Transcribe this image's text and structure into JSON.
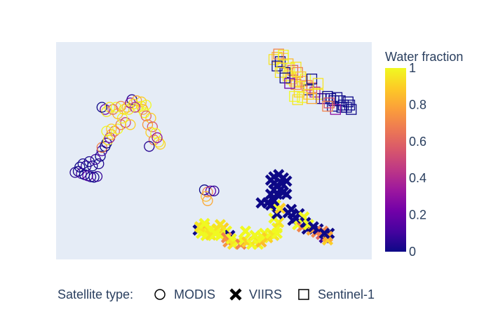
{
  "chart_data": {
    "type": "scatter",
    "title": "",
    "xlabel": "",
    "ylabel": "",
    "show_axis_ticks": false,
    "colors": {
      "plot_bg": "#e5ecf6",
      "page_bg": "#ffffff",
      "text": "#2a3f5f"
    },
    "colorscale": {
      "name": "Plasma",
      "stops": [
        [
          0.0,
          "#0d0887"
        ],
        [
          0.1111,
          "#46039f"
        ],
        [
          0.2222,
          "#7201a8"
        ],
        [
          0.3333,
          "#9c179e"
        ],
        [
          0.4444,
          "#bd3786"
        ],
        [
          0.5556,
          "#d8576b"
        ],
        [
          0.6667,
          "#ed7953"
        ],
        [
          0.7778,
          "#fb9f3a"
        ],
        [
          0.8889,
          "#fdca26"
        ],
        [
          1.0,
          "#f0f921"
        ]
      ]
    },
    "colorbar": {
      "title": "Water fraction",
      "range": [
        0,
        1
      ],
      "ticks": [
        0,
        0.2,
        0.4,
        0.6,
        0.8,
        1
      ],
      "tick_labels": [
        "0",
        "0.2",
        "0.4",
        "0.6",
        "0.8",
        "1"
      ]
    },
    "legend": {
      "title": "Satellite type:",
      "placement": "bottom-center",
      "orientation": "horizontal",
      "entries": [
        {
          "name": "MODIS",
          "symbol": "circle-open"
        },
        {
          "name": "VIIRS",
          "symbol": "x"
        },
        {
          "name": "Sentinel-1",
          "symbol": "square-open"
        }
      ]
    },
    "series": [
      {
        "name": "MODIS",
        "symbol": "circle-open",
        "points": [
          [
            0.06,
            0.4,
            0.05
          ],
          [
            0.07,
            0.405,
            0.02
          ],
          [
            0.08,
            0.395,
            0.1
          ],
          [
            0.09,
            0.39,
            0.0
          ],
          [
            0.1,
            0.385,
            0.15
          ],
          [
            0.11,
            0.38,
            0.05
          ],
          [
            0.12,
            0.378,
            0.0
          ],
          [
            0.13,
            0.382,
            0.08
          ],
          [
            0.075,
            0.425,
            0.0
          ],
          [
            0.085,
            0.44,
            0.03
          ],
          [
            0.095,
            0.43,
            0.06
          ],
          [
            0.105,
            0.45,
            0.02
          ],
          [
            0.115,
            0.43,
            0.0
          ],
          [
            0.125,
            0.46,
            0.1
          ],
          [
            0.135,
            0.44,
            0.04
          ],
          [
            0.14,
            0.475,
            0.0
          ],
          [
            0.145,
            0.5,
            0.12
          ],
          [
            0.155,
            0.52,
            0.0
          ],
          [
            0.145,
            0.515,
            0.7
          ],
          [
            0.16,
            0.535,
            0.0
          ],
          [
            0.165,
            0.55,
            0.95
          ],
          [
            0.17,
            0.56,
            0.3
          ],
          [
            0.175,
            0.575,
            0.8
          ],
          [
            0.185,
            0.59,
            0.65
          ],
          [
            0.16,
            0.59,
            1.0
          ],
          [
            0.175,
            0.6,
            0.9
          ],
          [
            0.195,
            0.6,
            1.0
          ],
          [
            0.205,
            0.62,
            0.7
          ],
          [
            0.22,
            0.63,
            0.5
          ],
          [
            0.235,
            0.62,
            0.9
          ],
          [
            0.21,
            0.65,
            1.0
          ],
          [
            0.195,
            0.67,
            0.85
          ],
          [
            0.155,
            0.69,
            0.2
          ],
          [
            0.16,
            0.68,
            0.95
          ],
          [
            0.145,
            0.7,
            0.0
          ],
          [
            0.17,
            0.7,
            0.95
          ],
          [
            0.18,
            0.69,
            0.6
          ],
          [
            0.19,
            0.7,
            1.0
          ],
          [
            0.205,
            0.705,
            0.7
          ],
          [
            0.215,
            0.69,
            0.95
          ],
          [
            0.225,
            0.7,
            0.85
          ],
          [
            0.235,
            0.72,
            0.3
          ],
          [
            0.24,
            0.735,
            0.05
          ],
          [
            0.245,
            0.715,
            0.95
          ],
          [
            0.255,
            0.73,
            0.8
          ],
          [
            0.26,
            0.7,
            1.0
          ],
          [
            0.27,
            0.705,
            0.95
          ],
          [
            0.275,
            0.69,
            0.8
          ],
          [
            0.28,
            0.675,
            1.0
          ],
          [
            0.285,
            0.66,
            0.6
          ],
          [
            0.3,
            0.65,
            0.9
          ],
          [
            0.29,
            0.62,
            0.75
          ],
          [
            0.305,
            0.61,
            0.55
          ],
          [
            0.3,
            0.585,
            0.9
          ],
          [
            0.315,
            0.58,
            1.0
          ],
          [
            0.31,
            0.55,
            0.65
          ],
          [
            0.325,
            0.54,
            0.95
          ],
          [
            0.295,
            0.52,
            0.05
          ],
          [
            0.33,
            0.53,
            0.9
          ],
          [
            0.32,
            0.56,
            0.3
          ],
          [
            0.285,
            0.71,
            1.0
          ],
          [
            0.27,
            0.725,
            0.9
          ],
          [
            0.25,
            0.7,
            0.4
          ],
          [
            0.23,
            0.69,
            0.95
          ],
          [
            0.47,
            0.32,
            0.0
          ],
          [
            0.48,
            0.31,
            0.7
          ],
          [
            0.49,
            0.315,
            0.2
          ],
          [
            0.475,
            0.29,
            0.85
          ],
          [
            0.5,
            0.315,
            0.05
          ],
          [
            0.48,
            0.27,
            0.8
          ]
        ]
      },
      {
        "name": "VIIRS",
        "symbol": "x",
        "points": [
          [
            0.45,
            0.135,
            0.0
          ],
          [
            0.46,
            0.145,
            1.0
          ],
          [
            0.47,
            0.15,
            0.95
          ],
          [
            0.48,
            0.125,
            0.85
          ],
          [
            0.49,
            0.14,
            1.0
          ],
          [
            0.5,
            0.13,
            1.0
          ],
          [
            0.51,
            0.14,
            0.95
          ],
          [
            0.52,
            0.13,
            1.0
          ],
          [
            0.53,
            0.145,
            0.9
          ],
          [
            0.54,
            0.13,
            1.0
          ],
          [
            0.55,
            0.11,
            0.0
          ],
          [
            0.46,
            0.12,
            1.0
          ],
          [
            0.475,
            0.11,
            1.0
          ],
          [
            0.49,
            0.112,
            0.95
          ],
          [
            0.505,
            0.118,
            1.0
          ],
          [
            0.52,
            0.11,
            1.0
          ],
          [
            0.54,
            0.1,
            0.7
          ],
          [
            0.545,
            0.08,
            0.75
          ],
          [
            0.555,
            0.095,
            1.0
          ],
          [
            0.56,
            0.07,
            0.95
          ],
          [
            0.575,
            0.08,
            1.0
          ],
          [
            0.585,
            0.07,
            0.7
          ],
          [
            0.595,
            0.09,
            1.0
          ],
          [
            0.605,
            0.08,
            0.9
          ],
          [
            0.62,
            0.07,
            1.0
          ],
          [
            0.635,
            0.09,
            0.95
          ],
          [
            0.64,
            0.07,
            1.0
          ],
          [
            0.65,
            0.08,
            0.85
          ],
          [
            0.655,
            0.1,
            1.0
          ],
          [
            0.63,
            0.11,
            1.0
          ],
          [
            0.66,
            0.12,
            1.0
          ],
          [
            0.67,
            0.1,
            0.9
          ],
          [
            0.68,
            0.12,
            1.0
          ],
          [
            0.69,
            0.11,
            0.95
          ],
          [
            0.7,
            0.12,
            1.0
          ],
          [
            0.7,
            0.145,
            1.0
          ],
          [
            0.705,
            0.17,
            0.95
          ],
          [
            0.69,
            0.19,
            1.0
          ],
          [
            0.7,
            0.21,
            0.0
          ],
          [
            0.71,
            0.235,
            0.9
          ],
          [
            0.695,
            0.25,
            1.0
          ],
          [
            0.69,
            0.27,
            0.0
          ],
          [
            0.68,
            0.3,
            0.0
          ],
          [
            0.69,
            0.32,
            0.0
          ],
          [
            0.7,
            0.3,
            0.0
          ],
          [
            0.71,
            0.32,
            0.0
          ],
          [
            0.72,
            0.31,
            0.0
          ],
          [
            0.73,
            0.3,
            0.0
          ],
          [
            0.7,
            0.34,
            0.0
          ],
          [
            0.69,
            0.35,
            0.0
          ],
          [
            0.68,
            0.365,
            0.0
          ],
          [
            0.69,
            0.38,
            0.0
          ],
          [
            0.705,
            0.39,
            0.0
          ],
          [
            0.72,
            0.375,
            0.0
          ],
          [
            0.73,
            0.36,
            0.0
          ],
          [
            0.715,
            0.35,
            0.0
          ],
          [
            0.65,
            0.26,
            0.0
          ],
          [
            0.67,
            0.26,
            0.0
          ],
          [
            0.68,
            0.25,
            0.0
          ],
          [
            0.735,
            0.215,
            0.0
          ],
          [
            0.75,
            0.18,
            0.0
          ],
          [
            0.765,
            0.16,
            1.0
          ],
          [
            0.78,
            0.15,
            0.7
          ],
          [
            0.795,
            0.14,
            0.0
          ],
          [
            0.81,
            0.135,
            0.8
          ],
          [
            0.825,
            0.125,
            0.7
          ],
          [
            0.84,
            0.115,
            0.6
          ],
          [
            0.85,
            0.1,
            0.1
          ],
          [
            0.86,
            0.09,
            0.9
          ],
          [
            0.865,
            0.12,
            0.0
          ],
          [
            0.86,
            0.105,
            0.8
          ],
          [
            0.76,
            0.19,
            0.0
          ],
          [
            0.745,
            0.23,
            0.0
          ],
          [
            0.77,
            0.21,
            0.0
          ],
          [
            0.785,
            0.195,
            1.0
          ],
          [
            0.79,
            0.17,
            0.0
          ],
          [
            0.8,
            0.16,
            1.0
          ],
          [
            0.815,
            0.15,
            0.0
          ],
          [
            0.83,
            0.14,
            0.0
          ],
          [
            0.845,
            0.13,
            0.7
          ],
          [
            0.85,
            0.12,
            0.0
          ],
          [
            0.455,
            0.15,
            0.95
          ],
          [
            0.47,
            0.165,
            1.0
          ],
          [
            0.52,
            0.16,
            0.95
          ],
          [
            0.6,
            0.13,
            1.0
          ]
        ]
      },
      {
        "name": "Sentinel-1",
        "symbol": "square-open",
        "points": [
          [
            0.69,
            0.92,
            0.95
          ],
          [
            0.7,
            0.93,
            0.85
          ],
          [
            0.71,
            0.91,
            0.0
          ],
          [
            0.72,
            0.925,
            0.95
          ],
          [
            0.735,
            0.9,
            0.85
          ],
          [
            0.74,
            0.88,
            1.0
          ],
          [
            0.75,
            0.87,
            0.6
          ],
          [
            0.76,
            0.885,
            0.95
          ],
          [
            0.765,
            0.86,
            0.7
          ],
          [
            0.775,
            0.84,
            0.9
          ],
          [
            0.78,
            0.82,
            0.8
          ],
          [
            0.79,
            0.83,
            1.0
          ],
          [
            0.795,
            0.8,
            0.7
          ],
          [
            0.8,
            0.78,
            0.0
          ],
          [
            0.81,
            0.79,
            0.6
          ],
          [
            0.82,
            0.77,
            0.4
          ],
          [
            0.83,
            0.76,
            0.95
          ],
          [
            0.84,
            0.74,
            0.0
          ],
          [
            0.85,
            0.74,
            0.1
          ],
          [
            0.86,
            0.75,
            0.0
          ],
          [
            0.87,
            0.74,
            0.0
          ],
          [
            0.88,
            0.73,
            0.0
          ],
          [
            0.89,
            0.745,
            0.0
          ],
          [
            0.9,
            0.73,
            0.0
          ],
          [
            0.91,
            0.71,
            0.0
          ],
          [
            0.92,
            0.7,
            0.0
          ],
          [
            0.93,
            0.71,
            0.0
          ],
          [
            0.935,
            0.69,
            0.0
          ],
          [
            0.925,
            0.725,
            0.0
          ],
          [
            0.905,
            0.7,
            0.0
          ],
          [
            0.885,
            0.69,
            0.3
          ],
          [
            0.875,
            0.705,
            0.0
          ],
          [
            0.865,
            0.72,
            0.55
          ],
          [
            0.86,
            0.705,
            0.7
          ],
          [
            0.755,
            0.75,
            1.0
          ],
          [
            0.765,
            0.735,
            0.95
          ],
          [
            0.78,
            0.745,
            1.0
          ],
          [
            0.77,
            0.77,
            0.9
          ],
          [
            0.8,
            0.76,
            0.9
          ],
          [
            0.81,
            0.74,
            0.8
          ],
          [
            0.7,
            0.89,
            0.0
          ],
          [
            0.715,
            0.88,
            0.95
          ],
          [
            0.725,
            0.86,
            0.0
          ],
          [
            0.735,
            0.845,
            0.95
          ],
          [
            0.745,
            0.83,
            0.9
          ],
          [
            0.755,
            0.82,
            0.95
          ],
          [
            0.76,
            0.805,
            0.7
          ],
          [
            0.77,
            0.795,
            0.95
          ],
          [
            0.705,
            0.945,
            0.7
          ],
          [
            0.72,
            0.94,
            1.0
          ],
          [
            0.71,
            0.86,
            0.95
          ],
          [
            0.725,
            0.835,
            0.0
          ],
          [
            0.74,
            0.81,
            0.2
          ],
          [
            0.81,
            0.83,
            0.0
          ],
          [
            0.83,
            0.81,
            0.95
          ]
        ]
      }
    ]
  }
}
